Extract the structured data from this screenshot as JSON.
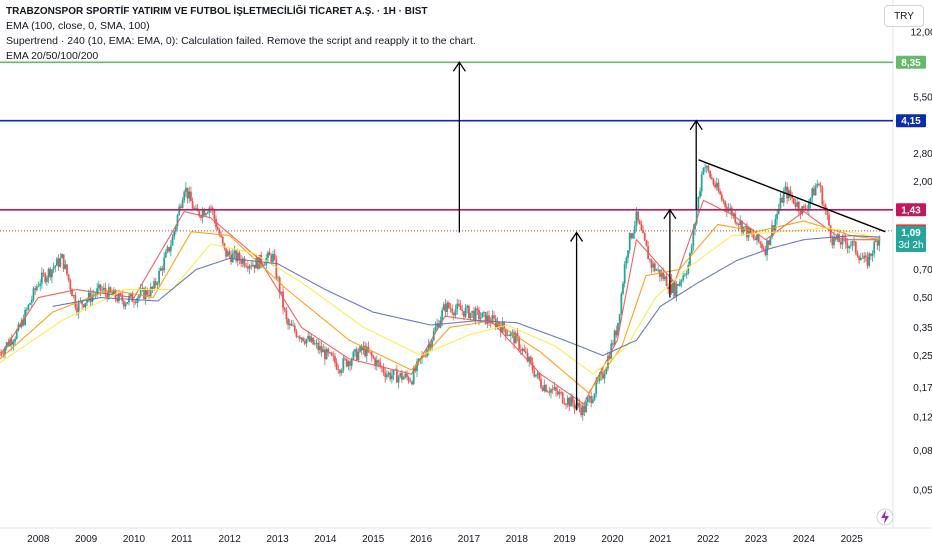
{
  "header": {
    "title": "TRABZONSPOR SPORTİF YATIRIM VE FUTBOL İŞLETMECİLİĞİ TİCARET A.Ş. · 1H · BIST",
    "lines": [
      "EMA (100, close, 0, SMA, 100)",
      "Supertrend · 240 (10, EMA: EMA, 0): Calculation failed. Remove the script and reapply it to the chart.",
      "EMA 20/50/100/200"
    ],
    "currency": "TRY"
  },
  "colors": {
    "green_line": "#66bb6a",
    "blue_line": "#0d2ea8",
    "red_line": "#c2185b",
    "dotted_line": "#e53935",
    "current_badge": "#26a69a",
    "ema20": "#ef5350",
    "ema50": "#ff9800",
    "ema100": "#ffeb3b",
    "ema200": "#5c6bc0",
    "up_candle": "#26a69a",
    "down_candle": "#ef5350"
  },
  "chart_data": {
    "type": "candlestick",
    "y_scale": "log",
    "ylim": [
      0.04,
      12.5
    ],
    "y_ticks": [
      "12,00",
      "5,50",
      "2,80",
      "2,00",
      "0,70",
      "0,50",
      "0,35",
      "0,25",
      "0,17",
      "0,12",
      "0,08",
      "0,05"
    ],
    "y_tick_values": [
      12.0,
      5.5,
      2.8,
      2.0,
      0.7,
      0.5,
      0.35,
      0.25,
      0.17,
      0.12,
      0.08,
      0.05
    ],
    "x_range": [
      2007.2,
      2025.8
    ],
    "x_ticks": [
      "2008",
      "2009",
      "2010",
      "2011",
      "2012",
      "2013",
      "2014",
      "2015",
      "2016",
      "2017",
      "2018",
      "2019",
      "2020",
      "2021",
      "2022",
      "2023",
      "2024",
      "2025"
    ],
    "price_path": [
      [
        2007.2,
        0.26
      ],
      [
        2007.6,
        0.34
      ],
      [
        2008.0,
        0.6
      ],
      [
        2008.5,
        0.8
      ],
      [
        2008.8,
        0.45
      ],
      [
        2009.3,
        0.55
      ],
      [
        2009.8,
        0.48
      ],
      [
        2010.4,
        0.55
      ],
      [
        2010.8,
        1.0
      ],
      [
        2011.05,
        1.9
      ],
      [
        2011.3,
        1.35
      ],
      [
        2011.6,
        1.5
      ],
      [
        2011.9,
        0.85
      ],
      [
        2012.5,
        0.75
      ],
      [
        2012.9,
        0.82
      ],
      [
        2013.2,
        0.36
      ],
      [
        2013.8,
        0.28
      ],
      [
        2014.3,
        0.22
      ],
      [
        2014.8,
        0.27
      ],
      [
        2015.3,
        0.2
      ],
      [
        2015.8,
        0.19
      ],
      [
        2016.2,
        0.3
      ],
      [
        2016.5,
        0.45
      ],
      [
        2017.0,
        0.42
      ],
      [
        2017.6,
        0.37
      ],
      [
        2018.0,
        0.3
      ],
      [
        2018.5,
        0.18
      ],
      [
        2019.0,
        0.15
      ],
      [
        2019.4,
        0.13
      ],
      [
        2019.8,
        0.2
      ],
      [
        2020.1,
        0.35
      ],
      [
        2020.3,
        0.9
      ],
      [
        2020.5,
        1.3
      ],
      [
        2020.8,
        0.75
      ],
      [
        2021.3,
        0.55
      ],
      [
        2021.6,
        0.75
      ],
      [
        2021.9,
        2.5
      ],
      [
        2022.3,
        1.6
      ],
      [
        2022.8,
        1.1
      ],
      [
        2023.2,
        0.9
      ],
      [
        2023.6,
        1.8
      ],
      [
        2024.0,
        1.4
      ],
      [
        2024.3,
        2.0
      ],
      [
        2024.6,
        1.0
      ],
      [
        2025.0,
        0.95
      ],
      [
        2025.3,
        0.75
      ],
      [
        2025.6,
        1.09
      ]
    ],
    "ema_paths": {
      "EMA 20": [
        [
          2007.2,
          0.25
        ],
        [
          2008.0,
          0.5
        ],
        [
          2008.8,
          0.55
        ],
        [
          2010.0,
          0.5
        ],
        [
          2011.05,
          1.4
        ],
        [
          2011.6,
          1.3
        ],
        [
          2012.6,
          0.8
        ],
        [
          2013.5,
          0.35
        ],
        [
          2014.5,
          0.24
        ],
        [
          2015.8,
          0.2
        ],
        [
          2016.5,
          0.4
        ],
        [
          2017.5,
          0.37
        ],
        [
          2018.5,
          0.2
        ],
        [
          2019.4,
          0.14
        ],
        [
          2020.1,
          0.3
        ],
        [
          2020.5,
          1.0
        ],
        [
          2021.3,
          0.6
        ],
        [
          2021.9,
          1.6
        ],
        [
          2022.5,
          1.35
        ],
        [
          2023.2,
          1.0
        ],
        [
          2024.0,
          1.4
        ],
        [
          2024.8,
          1.0
        ],
        [
          2025.6,
          1.0
        ]
      ],
      "EMA 50": [
        [
          2007.2,
          0.24
        ],
        [
          2008.3,
          0.42
        ],
        [
          2009.5,
          0.55
        ],
        [
          2010.4,
          0.5
        ],
        [
          2011.2,
          1.1
        ],
        [
          2012.0,
          1.05
        ],
        [
          2013.2,
          0.55
        ],
        [
          2014.5,
          0.3
        ],
        [
          2015.8,
          0.21
        ],
        [
          2016.6,
          0.35
        ],
        [
          2017.5,
          0.38
        ],
        [
          2018.5,
          0.26
        ],
        [
          2019.5,
          0.16
        ],
        [
          2020.2,
          0.28
        ],
        [
          2020.7,
          0.65
        ],
        [
          2021.4,
          0.7
        ],
        [
          2022.2,
          1.2
        ],
        [
          2023.0,
          1.1
        ],
        [
          2024.0,
          1.25
        ],
        [
          2025.0,
          1.05
        ],
        [
          2025.6,
          1.0
        ]
      ],
      "EMA 100": [
        [
          2007.2,
          0.23
        ],
        [
          2008.5,
          0.38
        ],
        [
          2009.8,
          0.55
        ],
        [
          2010.8,
          0.55
        ],
        [
          2011.6,
          0.95
        ],
        [
          2012.5,
          0.85
        ],
        [
          2013.5,
          0.6
        ],
        [
          2014.8,
          0.35
        ],
        [
          2016.0,
          0.25
        ],
        [
          2017.0,
          0.32
        ],
        [
          2017.8,
          0.36
        ],
        [
          2018.8,
          0.28
        ],
        [
          2019.6,
          0.2
        ],
        [
          2020.3,
          0.28
        ],
        [
          2020.9,
          0.5
        ],
        [
          2021.6,
          0.72
        ],
        [
          2022.5,
          1.05
        ],
        [
          2023.5,
          1.1
        ],
        [
          2024.5,
          1.15
        ],
        [
          2025.6,
          1.02
        ]
      ],
      "EMA 200": [
        [
          2008.3,
          0.45
        ],
        [
          2009.3,
          0.5
        ],
        [
          2010.5,
          0.48
        ],
        [
          2011.3,
          0.7
        ],
        [
          2012.0,
          0.8
        ],
        [
          2013.0,
          0.75
        ],
        [
          2014.0,
          0.55
        ],
        [
          2015.0,
          0.42
        ],
        [
          2016.2,
          0.36
        ],
        [
          2017.2,
          0.38
        ],
        [
          2018.0,
          0.37
        ],
        [
          2019.0,
          0.3
        ],
        [
          2019.8,
          0.25
        ],
        [
          2020.5,
          0.3
        ],
        [
          2021.0,
          0.45
        ],
        [
          2021.8,
          0.6
        ],
        [
          2022.6,
          0.78
        ],
        [
          2023.3,
          0.9
        ],
        [
          2024.0,
          1.0
        ],
        [
          2025.0,
          1.05
        ],
        [
          2025.6,
          1.03
        ]
      ]
    },
    "horizontal_levels": [
      {
        "name": "green",
        "price": 8.35,
        "label": "8,35"
      },
      {
        "name": "blue",
        "price": 4.15,
        "label": "4,15"
      },
      {
        "name": "red",
        "price": 1.43,
        "label": "1,43"
      },
      {
        "name": "dotted",
        "price": 1.11,
        "label": "1,11"
      },
      {
        "name": "last",
        "price": 1.09,
        "label": "1,09",
        "sublabel": "3d 2h"
      }
    ],
    "arrows": [
      {
        "x": 2016.8,
        "from": 1.09,
        "to": 8.35
      },
      {
        "x": 2019.25,
        "from": 0.13,
        "to": 1.09
      },
      {
        "x": 2021.2,
        "from": 0.5,
        "to": 1.43
      },
      {
        "x": 2021.75,
        "from": 1.43,
        "to": 4.15
      }
    ],
    "trendline": {
      "x1": 2021.8,
      "y1": 2.6,
      "x2": 2025.7,
      "y2": 1.1
    },
    "legend_placement": "top-left"
  }
}
